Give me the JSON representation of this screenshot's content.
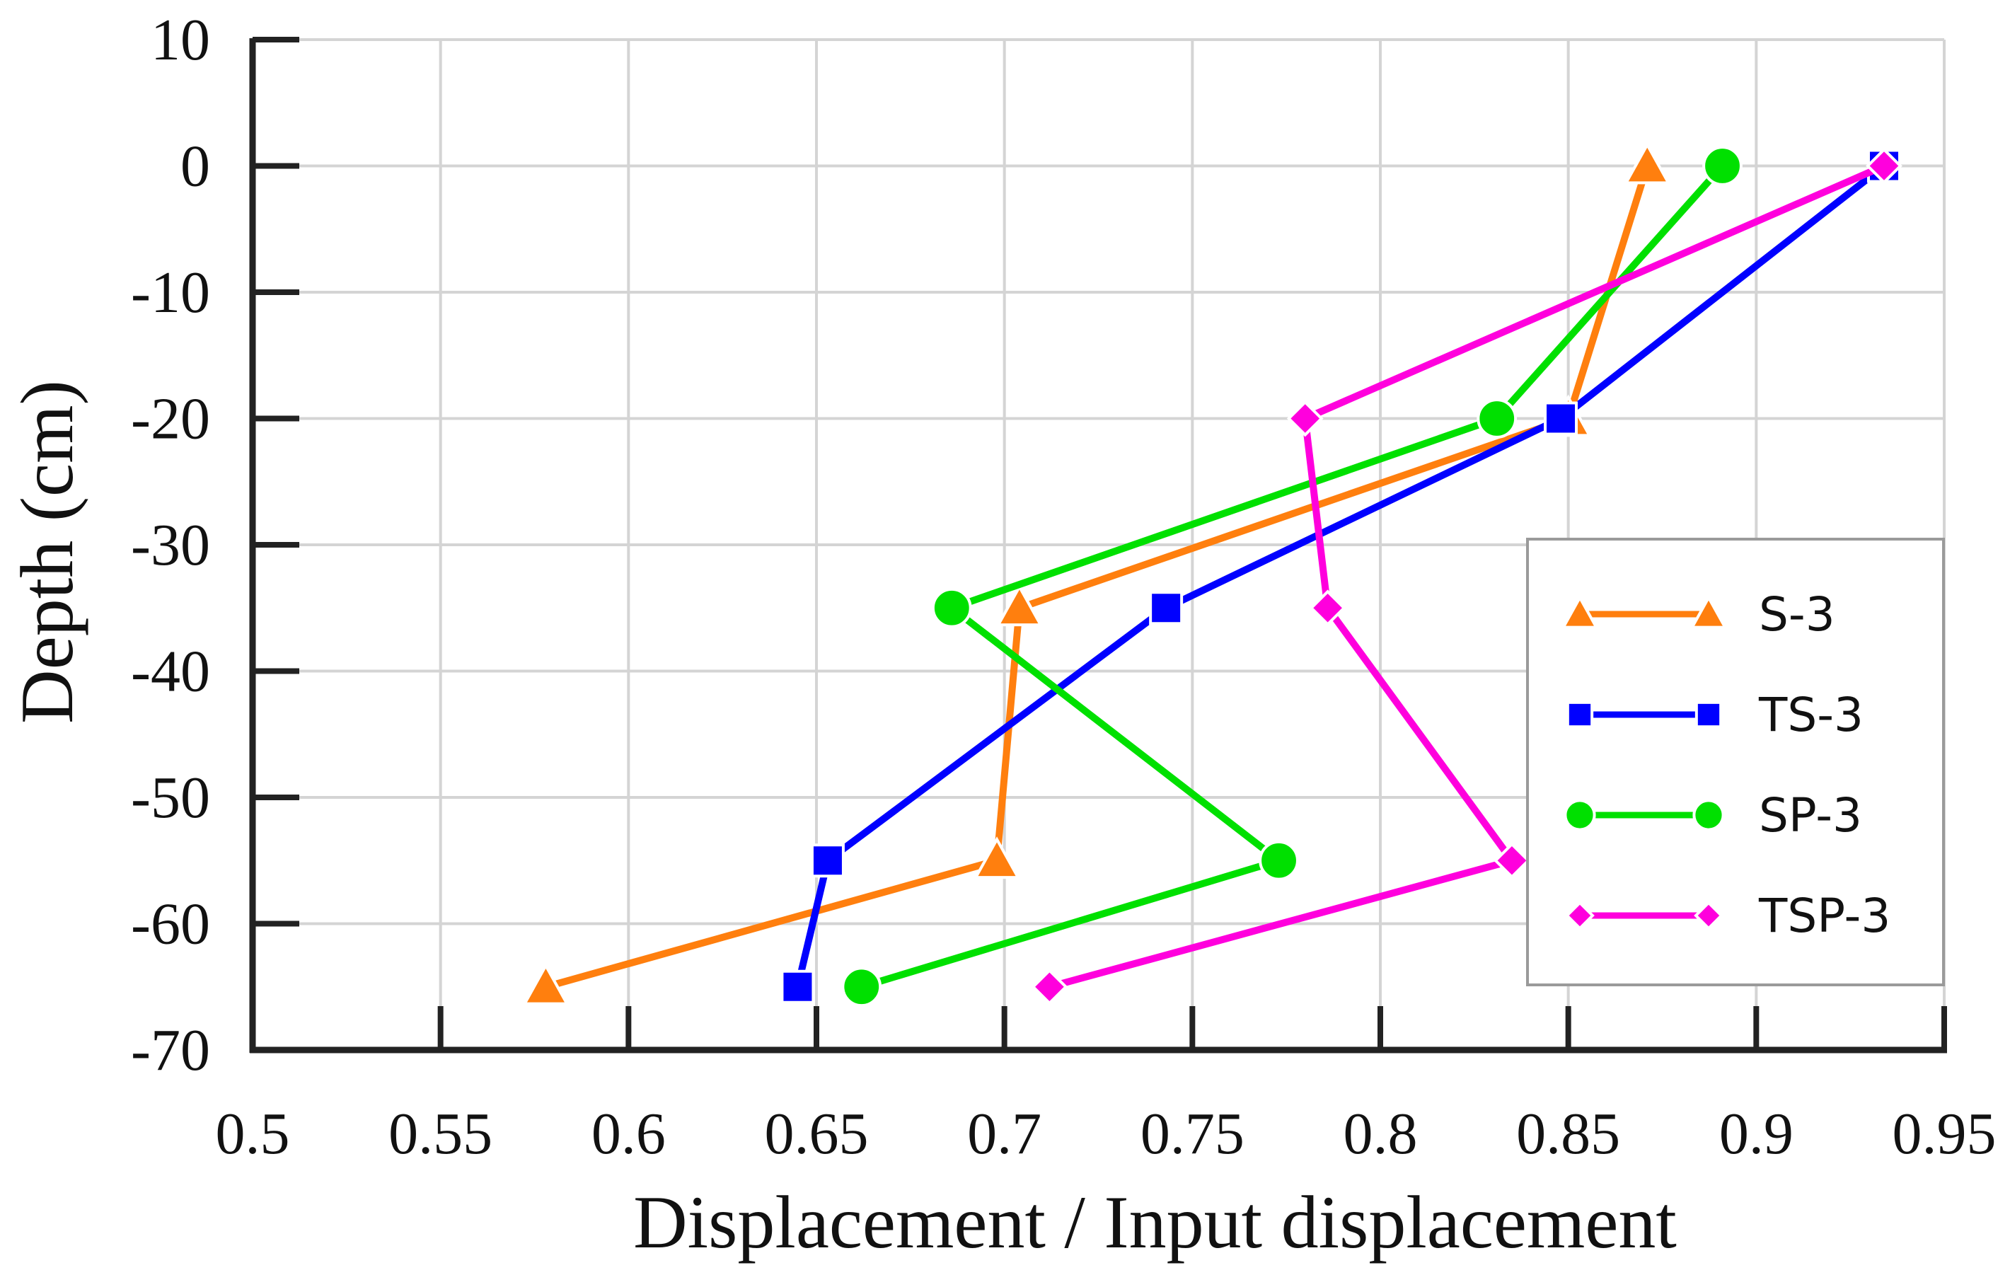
{
  "chart_data": {
    "type": "line",
    "xlabel": "Displacement / Input displacement",
    "ylabel": "Depth (cm)",
    "xlim": [
      0.5,
      0.95
    ],
    "ylim": [
      -70,
      10
    ],
    "xticks": [
      "0.5",
      "0.55",
      "0.6",
      "0.65",
      "0.7",
      "0.75",
      "0.8",
      "0.85",
      "0.9",
      "0.95"
    ],
    "yticks": [
      "10",
      "0",
      "-10",
      "-20",
      "-30",
      "-40",
      "-50",
      "-60",
      "-70"
    ],
    "grid": true,
    "legend_position": "bottom-right",
    "series": [
      {
        "name": "S-3",
        "color": "#ff7f0e",
        "marker": "triangle",
        "points": [
          [
            0.871,
            0
          ],
          [
            0.85,
            -20
          ],
          [
            0.704,
            -35
          ],
          [
            0.698,
            -55
          ],
          [
            0.578,
            -65
          ]
        ]
      },
      {
        "name": "TS-3",
        "color": "#0000ff",
        "marker": "square",
        "points": [
          [
            0.934,
            0
          ],
          [
            0.848,
            -20
          ],
          [
            0.743,
            -35
          ],
          [
            0.653,
            -55
          ],
          [
            0.645,
            -65
          ]
        ]
      },
      {
        "name": "SP-3",
        "color": "#00e000",
        "marker": "circle",
        "points": [
          [
            0.891,
            0
          ],
          [
            0.831,
            -20
          ],
          [
            0.686,
            -35
          ],
          [
            0.773,
            -55
          ],
          [
            0.662,
            -65
          ]
        ]
      },
      {
        "name": "TSP-3",
        "color": "#ff00dd",
        "marker": "diamond",
        "points": [
          [
            0.934,
            0
          ],
          [
            0.78,
            -20
          ],
          [
            0.786,
            -35
          ],
          [
            0.835,
            -55
          ],
          [
            0.712,
            -65
          ]
        ]
      }
    ]
  }
}
